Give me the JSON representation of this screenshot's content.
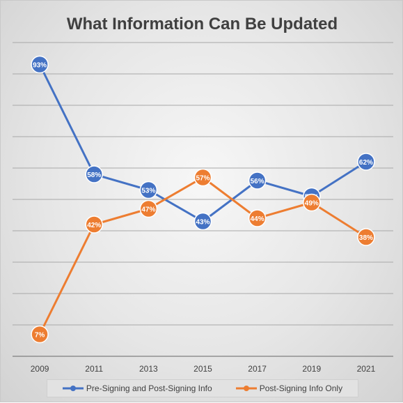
{
  "chart_data": {
    "type": "line",
    "title": "What Information Can Be Updated",
    "categories": [
      "2009",
      "2011",
      "2013",
      "2015",
      "2017",
      "2019",
      "2021"
    ],
    "series": [
      {
        "name": "Pre-Signing and Post-Signing Info",
        "color": "#4472C4",
        "values": [
          93,
          58,
          53,
          43,
          56,
          51,
          62
        ],
        "labels": [
          "93%",
          "58%",
          "53%",
          "43%",
          "56%",
          "51%",
          "62%"
        ]
      },
      {
        "name": "Post-Signing Info Only",
        "color": "#ED7D31",
        "values": [
          7,
          42,
          47,
          57,
          44,
          49,
          38
        ],
        "labels": [
          "7%",
          "42%",
          "47%",
          "57%",
          "44%",
          "49%",
          "38%"
        ]
      }
    ],
    "ylim": [
      0,
      100
    ],
    "gridlines": true,
    "y_tick_labels_shown": false,
    "legend_position": "bottom"
  }
}
